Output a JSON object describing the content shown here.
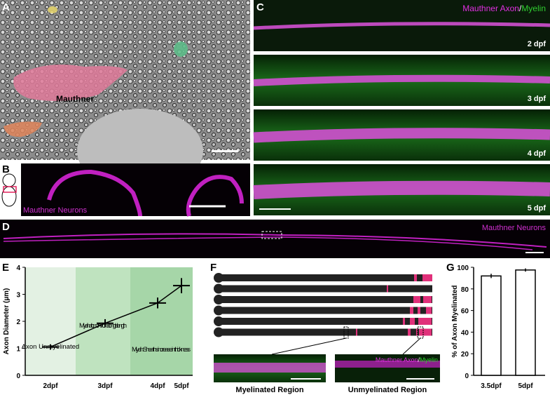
{
  "panel_labels": [
    "A",
    "B",
    "C",
    "D",
    "E",
    "F",
    "G"
  ],
  "panel_a": {
    "label": "Mauthner"
  },
  "panel_b": {
    "label": "Mauthner Neurons"
  },
  "panel_c": {
    "header_axon": "Mauthner Axon",
    "header_sep": "/",
    "header_myelin": "Myelin",
    "stages": [
      "2 dpf",
      "3 dpf",
      "4 dpf",
      "5 dpf"
    ]
  },
  "panel_d": {
    "label": "Mauthner Neurons"
  },
  "panel_e": {
    "type": "line",
    "y_label": "Axon Diameter  (µm)",
    "categories": [
      "2dpf",
      "3dpf",
      "4dpf",
      "5dpf"
    ],
    "values": [
      1.05,
      1.93,
      2.68,
      3.32
    ],
    "errors": [
      0.1,
      0.15,
      0.2,
      0.28
    ],
    "ylim": [
      0,
      4
    ],
    "yticks": [
      0,
      1,
      2,
      3,
      4
    ],
    "color": "#000000",
    "annotations": [
      "Axon Unmyelinated",
      "Myelination of Axon along its length",
      "Myelin Sheaths increase in thickness"
    ],
    "band_colors": [
      "#e3f1e3",
      "#bfe3bf",
      "#a6d6a8"
    ]
  },
  "panel_f": {
    "header_axon": "Mauthner Axon",
    "header_sep": "/",
    "header_myelin": "Myelin",
    "left_label": "Myelinated Region",
    "right_label": "Unmyelinated Region"
  },
  "panel_g": {
    "type": "bar",
    "y_label": "% of Axon Myelinated",
    "categories": [
      "3.5dpf",
      "5dpf"
    ],
    "values": [
      92,
      97.5
    ],
    "errors": [
      2,
      1.5
    ],
    "ylim": [
      0,
      100
    ],
    "yticks": [
      0,
      20,
      40,
      60,
      80,
      100
    ],
    "color": "#ffffff"
  }
}
